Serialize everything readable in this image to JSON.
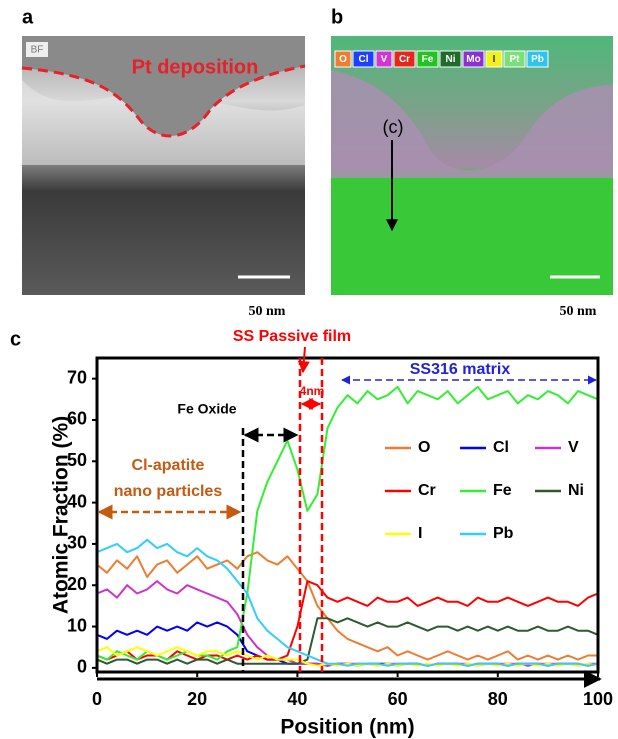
{
  "panels": [
    {
      "label": "a",
      "image_tag": "BF",
      "annotation": "Pt deposition",
      "scale_bar": "50 nm"
    },
    {
      "label": "b",
      "element_badges": [
        {
          "text": "O",
          "color": "#ed7d31"
        },
        {
          "text": "Cl",
          "color": "#1f3fff"
        },
        {
          "text": "V",
          "color": "#d633d6"
        },
        {
          "text": "Cr",
          "color": "#e8261c"
        },
        {
          "text": "Fe",
          "color": "#22c422"
        },
        {
          "text": "Ni",
          "color": "#1f6b2a"
        },
        {
          "text": "Mo",
          "color": "#8e2fd6"
        },
        {
          "text": "I",
          "color": "#f2f21a"
        },
        {
          "text": "Pt",
          "color": "#7be07b"
        },
        {
          "text": "Pb",
          "color": "#2ec4f0"
        }
      ],
      "annotation": "(c)",
      "scale_bar": "50 nm"
    }
  ],
  "chart_data": {
    "type": "line",
    "panel_label": "c",
    "x_label": "Position (nm)",
    "y_label": "Atomic Fraction (%)",
    "annotations": {
      "passive_film": "SS Passive film",
      "thickness": "4nm",
      "matrix": "SS316 matrix",
      "fe_oxide": "Fe Oxide",
      "apatite": [
        "Cl-apatite",
        "nano particles"
      ]
    },
    "x": [
      0,
      2,
      4,
      6,
      8,
      10,
      12,
      14,
      16,
      18,
      20,
      22,
      24,
      26,
      28,
      30,
      32,
      34,
      36,
      38,
      40,
      42,
      44,
      46,
      48,
      50,
      52,
      54,
      56,
      58,
      60,
      62,
      64,
      66,
      68,
      70,
      72,
      74,
      76,
      78,
      80,
      82,
      84,
      86,
      88,
      90,
      92,
      94,
      96,
      98,
      100
    ],
    "xlim": [
      0,
      100
    ],
    "xticks": [
      0,
      20,
      40,
      60,
      80,
      100
    ],
    "ylim": [
      -1,
      75
    ],
    "yticks": [
      0,
      10,
      20,
      30,
      40,
      50,
      60,
      70
    ],
    "series": [
      {
        "name": "O",
        "color": "#ed7d31",
        "values": [
          25,
          23,
          26,
          24,
          27,
          22,
          25,
          26,
          23,
          25,
          27,
          24,
          25,
          26,
          24,
          27,
          28,
          26,
          25,
          27,
          24,
          21,
          15,
          12,
          9,
          7,
          6,
          5,
          4,
          5,
          3,
          4,
          3,
          2,
          3,
          4,
          3,
          2,
          3,
          2,
          3,
          4,
          2,
          3,
          2,
          3,
          2,
          3,
          2,
          3,
          3
        ]
      },
      {
        "name": "Cl",
        "color": "#0000ff",
        "values": [
          8,
          7,
          9,
          8,
          9,
          8,
          10,
          9,
          10,
          9,
          11,
          10,
          11,
          10,
          8,
          4,
          3,
          2,
          2,
          1,
          1,
          1,
          1,
          0.5,
          1,
          1,
          0.5,
          1,
          1,
          1,
          0.5,
          1,
          1,
          0.5,
          1,
          1,
          1,
          0.5,
          1,
          1,
          1,
          0.5,
          1,
          1,
          1,
          0.5,
          1,
          1,
          1,
          0.5,
          1
        ]
      },
      {
        "name": "V",
        "color": "#cc33cc",
        "values": [
          18,
          19,
          17,
          20,
          18,
          19,
          21,
          19,
          18,
          20,
          19,
          18,
          17,
          16,
          13,
          8,
          5,
          3,
          2,
          2,
          1,
          1,
          1,
          0.5,
          1,
          1,
          1,
          1,
          0.5,
          1,
          1,
          1,
          1,
          0.5,
          1,
          1,
          1,
          1,
          0.5,
          1,
          1,
          1,
          1,
          0.5,
          1,
          1,
          1,
          1,
          0.5,
          1,
          1
        ]
      },
      {
        "name": "Cr",
        "color": "#ff0000",
        "values": [
          3,
          2,
          3,
          4,
          2,
          3,
          3,
          2,
          4,
          3,
          2,
          3,
          3,
          2,
          3,
          2,
          3,
          2,
          2,
          3,
          10,
          21,
          20,
          17,
          16,
          17,
          16,
          15,
          17,
          16,
          16,
          17,
          15,
          16,
          17,
          16,
          16,
          15,
          17,
          16,
          16,
          17,
          16,
          15,
          16,
          17,
          16,
          16,
          15,
          17,
          18
        ]
      },
      {
        "name": "Fe",
        "color": "#33ee33",
        "values": [
          3,
          2,
          4,
          3,
          2,
          4,
          3,
          2,
          3,
          4,
          3,
          3,
          2,
          4,
          5,
          18,
          38,
          45,
          50,
          55,
          48,
          38,
          42,
          58,
          63,
          66,
          64,
          67,
          65,
          66,
          68,
          64,
          67,
          66,
          65,
          67,
          64,
          66,
          68,
          65,
          66,
          67,
          64,
          66,
          65,
          67,
          66,
          64,
          67,
          66,
          65
        ]
      },
      {
        "name": "Ni",
        "color": "#2e5a2e",
        "values": [
          2,
          1,
          2,
          2,
          1,
          2,
          2,
          1,
          2,
          1,
          2,
          2,
          1,
          2,
          1,
          1,
          1,
          1,
          1,
          1,
          1,
          2,
          12,
          12,
          11,
          12,
          11,
          10,
          11,
          10,
          10,
          11,
          10,
          9,
          10,
          10,
          9,
          10,
          9,
          10,
          9,
          10,
          9,
          9,
          10,
          9,
          9,
          10,
          9,
          9,
          8
        ]
      },
      {
        "name": "I",
        "color": "#ffff00",
        "values": [
          4,
          5,
          3,
          4,
          5,
          4,
          3,
          4,
          5,
          4,
          3,
          4,
          4,
          3,
          4,
          3,
          2,
          3,
          2,
          2,
          2,
          1,
          0.5,
          1,
          0.5,
          1,
          0.5,
          1,
          0.5,
          1,
          0.5,
          1,
          0.5,
          1,
          0.5,
          1,
          0.5,
          1,
          0.5,
          1,
          0.5,
          1,
          0.5,
          1,
          0.5,
          1,
          0.5,
          1,
          0.5,
          1,
          0.5
        ]
      },
      {
        "name": "Pb",
        "color": "#33ccff",
        "values": [
          28,
          29,
          30,
          28,
          29,
          31,
          29,
          30,
          28,
          27,
          29,
          27,
          26,
          24,
          21,
          18,
          12,
          9,
          7,
          5,
          4,
          3,
          2,
          1,
          1,
          0.5,
          1,
          1,
          1,
          0.5,
          1,
          1,
          1,
          0.5,
          1,
          1,
          1,
          0.5,
          1,
          1,
          1,
          0.5,
          1,
          1,
          1,
          0.5,
          1,
          1,
          1,
          0.5,
          1
        ]
      }
    ]
  }
}
